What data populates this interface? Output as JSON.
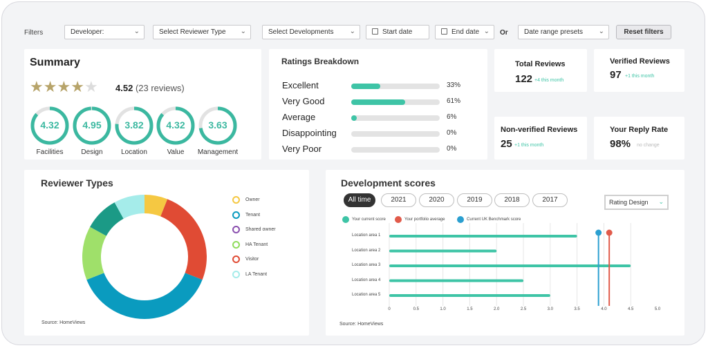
{
  "filters": {
    "label": "Filters",
    "developer": "Developer:",
    "reviewer_type": "Select Reviewer Type",
    "developments": "Select Developments",
    "start_date": "Start date",
    "end_date": "End date",
    "or_label": "Or",
    "date_presets": "Date range presets",
    "reset": "Reset filters"
  },
  "summary": {
    "title": "Summary",
    "stars_filled": 4,
    "stars_total": 5,
    "rating": "4.52",
    "reviews": "(23 reviews)",
    "gauges": [
      {
        "value": "4.32",
        "label": "Facilities",
        "score": 4.32
      },
      {
        "value": "4.95",
        "label": "Design",
        "score": 4.95
      },
      {
        "value": "3.82",
        "label": "Location",
        "score": 3.82
      },
      {
        "value": "4.32",
        "label": "Value",
        "score": 4.32
      },
      {
        "value": "3.63",
        "label": "Management",
        "score": 3.63
      }
    ],
    "gauge_max": 5,
    "accent": "#3bb8a0"
  },
  "ratings_breakdown": {
    "title": "Ratings Breakdown",
    "rows": [
      {
        "label": "Excellent",
        "pct": "33%",
        "fraction": 0.33
      },
      {
        "label": "Very Good",
        "pct": "61%",
        "fraction": 0.61
      },
      {
        "label": "Average",
        "pct": "6%",
        "fraction": 0.06
      },
      {
        "label": "Disappointing",
        "pct": "0%",
        "fraction": 0
      },
      {
        "label": "Very Poor",
        "pct": "0%",
        "fraction": 0
      }
    ]
  },
  "kpis": {
    "total": {
      "title": "Total Reviews",
      "value": "122",
      "delta": "+4 this month"
    },
    "verified": {
      "title": "Verified Reviews",
      "value": "97",
      "delta": "+1 this month"
    },
    "non_verified": {
      "title": "Non-verified Reviews",
      "value": "25",
      "delta": "+1 this month"
    },
    "reply_rate": {
      "title": "Your Reply Rate",
      "value": "98%",
      "delta": "no change"
    }
  },
  "reviewer_types": {
    "title": "Reviewer Types",
    "source": "Source: HomeViews",
    "legend": [
      {
        "label": "Owner",
        "color": "#f5c842"
      },
      {
        "label": "Tenant",
        "color": "#0a9bbf"
      },
      {
        "label": "Shared owner",
        "color": "#8a4fae"
      },
      {
        "label": "HA Tenant",
        "color": "#8fdc5b"
      },
      {
        "label": "Visitor",
        "color": "#e04b34"
      },
      {
        "label": "LA Tenant",
        "color": "#a5ecea"
      }
    ]
  },
  "chart_data": [
    {
      "type": "pie",
      "title": "Reviewer Types",
      "donut": true,
      "labels": [
        "Owner",
        "Visitor",
        "Tenant",
        "HA Tenant",
        "Shared owner",
        "LA Tenant"
      ],
      "values": [
        6,
        25,
        38,
        14,
        9,
        8
      ],
      "colors": [
        "#f5c842",
        "#e04b34",
        "#0a9bbf",
        "#9fe06a",
        "#1b9a86",
        "#a5ecea"
      ],
      "legend": "right"
    },
    {
      "type": "bar",
      "orientation": "horizontal",
      "title": "Development scores",
      "categories": [
        "Location area 1",
        "Location area 2",
        "Location area 3",
        "Location area 4",
        "Location area 5"
      ],
      "series": [
        {
          "name": "Your current score",
          "values": [
            3.5,
            2.0,
            4.5,
            2.5,
            3.0
          ],
          "color": "#3ec4a6"
        }
      ],
      "reference_lines": [
        {
          "name": "Your portfolio average",
          "value": 4.1,
          "color": "#e15a4a"
        },
        {
          "name": "Current UK Benchmark score",
          "value": 3.9,
          "color": "#2b9fd0"
        }
      ],
      "xlim": [
        0,
        5
      ],
      "xticks": [
        "0",
        "0.5",
        "1.0",
        "1.5",
        "2.0",
        "2.5",
        "3.0",
        "3.5",
        "4.0",
        "4.5",
        "5.0"
      ],
      "grid": true,
      "legend": "top-left"
    }
  ],
  "development_scores": {
    "title": "Development scores",
    "years": [
      "All time",
      "2021",
      "2020",
      "2019",
      "2018",
      "2017"
    ],
    "active_year": "All time",
    "rating_select": "Rating Design",
    "legend": [
      {
        "label": "Your current score",
        "color": "#3ec4a6"
      },
      {
        "label": "Your portfolio average",
        "color": "#e15a4a"
      },
      {
        "label": "Current UK Benchmark score",
        "color": "#2b9fd0"
      }
    ],
    "source": "Source: HomeViews"
  }
}
